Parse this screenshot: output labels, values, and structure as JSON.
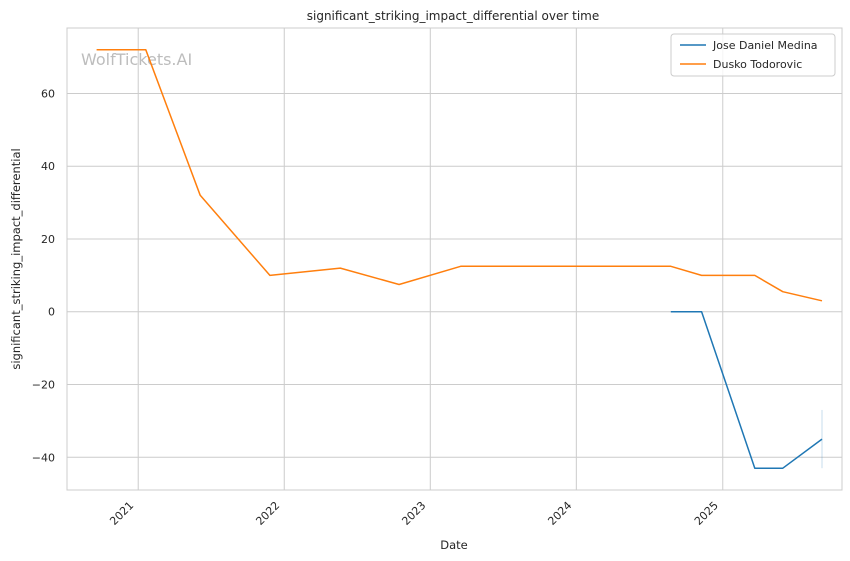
{
  "chart_data": {
    "type": "line",
    "title": "significant_striking_impact_differential over time",
    "xlabel": "Date",
    "ylabel": "significant_striking_impact_differential",
    "watermark": "WolfTickets.AI",
    "x_ticks": [
      "2021",
      "2022",
      "2023",
      "2024",
      "2025"
    ],
    "y_ticks": [
      -40,
      -20,
      0,
      20,
      40,
      60
    ],
    "xlim": [
      "2020-07-07",
      "2025-10-26"
    ],
    "ylim": [
      -49,
      78
    ],
    "grid": true,
    "legend_position": "top-right",
    "series": [
      {
        "name": "Jose Daniel Medina",
        "color": "#1f77b4",
        "points": [
          {
            "x": "2024-08-24",
            "y": 0.0
          },
          {
            "x": "2024-11-09",
            "y": 0.0
          },
          {
            "x": "2025-03-22",
            "y": -43.0
          },
          {
            "x": "2025-05-31",
            "y": -43.0
          },
          {
            "x": "2025-09-06",
            "y": -35.0
          }
        ],
        "error_bar": {
          "x": "2025-09-06",
          "low": -43.0,
          "high": -27.0
        }
      },
      {
        "name": "Dusko Todorovic",
        "color": "#ff7f0e",
        "points": [
          {
            "x": "2020-09-19",
            "y": 72.0
          },
          {
            "x": "2021-01-20",
            "y": 72.0
          },
          {
            "x": "2021-06-05",
            "y": 32.0
          },
          {
            "x": "2021-11-26",
            "y": 10.0
          },
          {
            "x": "2022-05-21",
            "y": 12.0
          },
          {
            "x": "2022-10-15",
            "y": 7.5
          },
          {
            "x": "2023-03-18",
            "y": 12.5
          },
          {
            "x": "2024-08-24",
            "y": 12.5
          },
          {
            "x": "2024-11-09",
            "y": 10.0
          },
          {
            "x": "2025-03-22",
            "y": 10.0
          },
          {
            "x": "2025-05-31",
            "y": 5.5
          },
          {
            "x": "2025-09-06",
            "y": 3.0
          }
        ]
      }
    ]
  }
}
